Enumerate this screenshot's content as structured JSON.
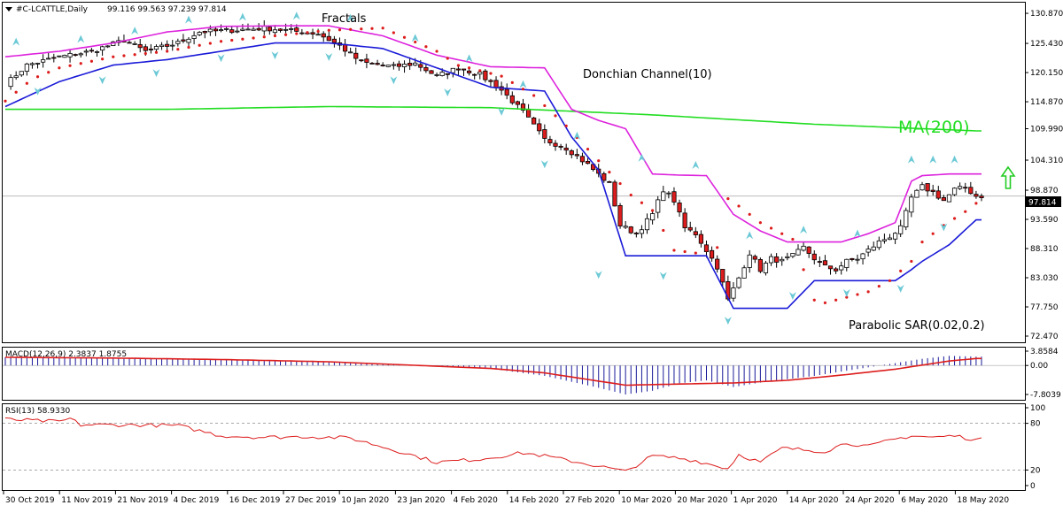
{
  "header": {
    "symbol_period": "#C-LCATTLE,Daily",
    "ohlc": "99.116 99.563 97.239 97.814"
  },
  "colors": {
    "bull": "#ffffff",
    "bear": "#dd1d1d",
    "candle_outline": "#000000",
    "ma": "#22dd22",
    "dc_upper": "#dd22dd",
    "dc_lower": "#1a1ad8",
    "sar": "#dd1d1d",
    "fractal": "#6cc9d6",
    "arrow": "#22cc22",
    "macd_hist": "#1a1a9a",
    "macd_signal": "#dd1d1d",
    "rsi": "#dd1d1d",
    "price_label_bg": "#000000"
  },
  "labels": {
    "fractals": "Fractals",
    "donchian": "Donchian Channel(10)",
    "ma": "MA(200)",
    "sar": "Parabolic SAR(0.02,0.2)",
    "macd": "MACD(12,26,9) 2.3837 1.8755",
    "rsi": "RSI(13) 58.9330",
    "arrow_icon": "up-arrow-icon"
  },
  "chart_data": [
    {
      "type": "candlestick",
      "title": "#C-LCATTLE,Daily",
      "current_price": "97.814",
      "price_axis_ticks": [
        "130.870",
        "125.430",
        "120.150",
        "114.870",
        "109.990",
        "104.310",
        "98.870",
        "93.590",
        "88.310",
        "83.030",
        "77.750",
        "72.470"
      ],
      "ylim": [
        72.47,
        132.0
      ],
      "x_axis_ticks": [
        "30 Oct 2019",
        "11 Nov 2019",
        "21 Nov 2019",
        "4 Dec 2019",
        "16 Dec 2019",
        "27 Dec 2019",
        "10 Jan 2020",
        "23 Jan 2020",
        "4 Feb 2020",
        "14 Feb 2020",
        "27 Feb 2020",
        "10 Mar 2020",
        "20 Mar 2020",
        "1 Apr 2020",
        "14 Apr 2020",
        "24 Apr 2020",
        "6 May 2020",
        "18 May 2020"
      ],
      "close_anchors": [
        [
          0,
          118.0
        ],
        [
          4,
          121.5
        ],
        [
          10,
          123.0
        ],
        [
          16,
          124.0
        ],
        [
          22,
          126.0
        ],
        [
          26,
          124.0
        ],
        [
          32,
          125.5
        ],
        [
          36,
          127.5
        ],
        [
          42,
          127.8
        ],
        [
          48,
          128.2
        ],
        [
          54,
          127.6
        ],
        [
          58,
          127.2
        ],
        [
          62,
          125.0
        ],
        [
          66,
          122.0
        ],
        [
          72,
          121.2
        ],
        [
          76,
          121.8
        ],
        [
          80,
          119.5
        ],
        [
          84,
          121.0
        ],
        [
          88,
          119.8
        ],
        [
          92,
          117.0
        ],
        [
          96,
          113.0
        ],
        [
          100,
          108.0
        ],
        [
          104,
          106.5
        ],
        [
          108,
          103.5
        ],
        [
          112,
          100.0
        ],
        [
          114,
          92.5
        ],
        [
          117,
          91.0
        ],
        [
          120,
          94.5
        ],
        [
          122,
          99.0
        ],
        [
          124,
          97.0
        ],
        [
          126,
          92.0
        ],
        [
          128,
          91.0
        ],
        [
          130,
          88.0
        ],
        [
          132,
          85.0
        ],
        [
          134,
          79.0
        ],
        [
          136,
          83.0
        ],
        [
          138,
          87.5
        ],
        [
          140,
          84.5
        ],
        [
          142,
          86.5
        ],
        [
          144,
          86.0
        ],
        [
          146,
          87.0
        ],
        [
          148,
          88.5
        ],
        [
          150,
          86.5
        ],
        [
          152,
          85.0
        ],
        [
          154,
          84.5
        ],
        [
          156,
          86.0
        ],
        [
          158,
          86.5
        ],
        [
          160,
          88.0
        ],
        [
          162,
          89.5
        ],
        [
          164,
          90.5
        ],
        [
          166,
          92.0
        ],
        [
          168,
          97.5
        ],
        [
          170,
          99.5
        ],
        [
          172,
          98.5
        ],
        [
          174,
          97.0
        ],
        [
          176,
          99.0
        ],
        [
          178,
          99.3
        ],
        [
          180,
          97.8
        ]
      ],
      "series": [
        {
          "name": "MA(200)",
          "x": [
            0,
            30,
            60,
            90,
            120,
            150,
            180
          ],
          "values": [
            113.5,
            113.5,
            114.0,
            113.8,
            112.5,
            110.8,
            109.6
          ]
        },
        {
          "name": "Donchian Channel(10) upper",
          "x": [
            0,
            10,
            20,
            30,
            40,
            50,
            60,
            70,
            80,
            90,
            100,
            105,
            110,
            115,
            120,
            125,
            130,
            135,
            140,
            145,
            150,
            155,
            160,
            165,
            168,
            170,
            175,
            180
          ],
          "values": [
            123.0,
            124.0,
            125.5,
            127.5,
            128.5,
            128.6,
            128.6,
            126.8,
            123.3,
            121.2,
            121.0,
            113.5,
            111.5,
            110.0,
            101.8,
            101.6,
            101.5,
            94.5,
            91.5,
            89.5,
            89.5,
            89.5,
            91.0,
            93.0,
            100.5,
            101.5,
            101.8,
            101.8
          ]
        },
        {
          "name": "Donchian Channel(10) lower",
          "x": [
            0,
            10,
            20,
            30,
            40,
            50,
            60,
            70,
            80,
            90,
            100,
            105,
            110,
            115,
            120,
            125,
            130,
            135,
            140,
            145,
            150,
            155,
            160,
            165,
            168,
            170,
            175,
            180
          ],
          "values": [
            114.0,
            118.5,
            121.5,
            122.5,
            124.0,
            125.5,
            125.5,
            124.5,
            121.0,
            117.5,
            116.8,
            108.5,
            102.5,
            87.0,
            87.0,
            87.0,
            87.0,
            77.5,
            77.5,
            77.5,
            82.5,
            82.5,
            82.5,
            82.5,
            84.5,
            86.0,
            89.0,
            93.5
          ]
        },
        {
          "name": "Parabolic SAR(0.02,0.2)",
          "x": [
            0,
            5,
            10,
            20,
            30,
            40,
            50,
            60,
            70,
            80,
            85,
            86,
            92,
            98,
            104,
            110,
            116,
            120,
            124,
            128,
            132,
            133,
            136,
            140,
            146,
            150,
            152,
            156,
            160,
            164,
            168,
            170,
            174,
            178,
            180
          ],
          "values": [
            115.0,
            119.0,
            121.0,
            123.0,
            124.0,
            125.8,
            126.8,
            127.8,
            128.2,
            124.0,
            120.8,
            121.0,
            119.5,
            116.0,
            110.5,
            104.2,
            98.0,
            95.2,
            88.0,
            87.5,
            88.5,
            98.0,
            96.0,
            93.0,
            90.0,
            79.0,
            78.5,
            79.5,
            80.5,
            82.5,
            86.0,
            89.5,
            92.5,
            95.0,
            96.5
          ]
        },
        {
          "name": "Fractals up",
          "x": [
            2,
            14,
            24,
            34,
            44,
            54,
            64,
            76,
            86,
            96,
            106,
            118,
            128,
            138,
            148,
            158,
            168,
            172,
            176
          ],
          "values": [
            125.5,
            126.0,
            127.5,
            129.5,
            130.0,
            130.2,
            129.8,
            126.2,
            122.5,
            117.8,
            108.5,
            104.5,
            103.2,
            90.5,
            91.5,
            90.8,
            104.2,
            104.2,
            104.2
          ]
        },
        {
          "name": "Fractals down",
          "x": [
            6,
            18,
            28,
            40,
            50,
            60,
            72,
            82,
            92,
            100,
            110,
            122,
            134,
            146,
            156,
            166,
            174
          ],
          "values": [
            117.0,
            119.0,
            120.3,
            123.0,
            123.5,
            123.2,
            119.0,
            116.8,
            113.3,
            103.8,
            83.8,
            83.6,
            75.5,
            80.0,
            80.5,
            81.3,
            92.4
          ]
        }
      ]
    },
    {
      "type": "bar",
      "title": "MACD(12,26,9) 2.3837 1.8755",
      "y_ticks": [
        "3.8584",
        "0.00",
        "-7.8039"
      ],
      "ylim": [
        -7.8039,
        3.8584
      ],
      "hist_anchors": [
        [
          0,
          2.2
        ],
        [
          20,
          2.0
        ],
        [
          40,
          1.6
        ],
        [
          60,
          1.0
        ],
        [
          80,
          -0.2
        ],
        [
          90,
          -0.9
        ],
        [
          100,
          -2.8
        ],
        [
          110,
          -6.0
        ],
        [
          115,
          -7.8
        ],
        [
          120,
          -6.8
        ],
        [
          125,
          -4.8
        ],
        [
          130,
          -4.0
        ],
        [
          135,
          -5.8
        ],
        [
          140,
          -4.6
        ],
        [
          150,
          -2.8
        ],
        [
          160,
          -0.5
        ],
        [
          170,
          1.8
        ],
        [
          175,
          2.6
        ],
        [
          180,
          2.38
        ]
      ],
      "signal_anchors": [
        [
          0,
          2.2
        ],
        [
          20,
          2.0
        ],
        [
          40,
          1.6
        ],
        [
          60,
          1.0
        ],
        [
          80,
          -0.2
        ],
        [
          90,
          -0.8
        ],
        [
          100,
          -2.0
        ],
        [
          110,
          -4.2
        ],
        [
          115,
          -5.3
        ],
        [
          125,
          -5.0
        ],
        [
          135,
          -4.7
        ],
        [
          145,
          -4.0
        ],
        [
          155,
          -2.6
        ],
        [
          165,
          -1.0
        ],
        [
          175,
          1.2
        ],
        [
          180,
          1.88
        ]
      ]
    },
    {
      "type": "line",
      "title": "RSI(13) 58.9330",
      "y_ticks": [
        "100",
        "80",
        "20",
        "0"
      ],
      "ylim": [
        0,
        100
      ],
      "rsi_anchors": [
        [
          0,
          85
        ],
        [
          10,
          82
        ],
        [
          12,
          86
        ],
        [
          14,
          78
        ],
        [
          24,
          78
        ],
        [
          32,
          77
        ],
        [
          40,
          64
        ],
        [
          48,
          62
        ],
        [
          56,
          63
        ],
        [
          64,
          61
        ],
        [
          72,
          46
        ],
        [
          80,
          30
        ],
        [
          88,
          34
        ],
        [
          96,
          42
        ],
        [
          100,
          38
        ],
        [
          110,
          25
        ],
        [
          115,
          18
        ],
        [
          120,
          38
        ],
        [
          124,
          36
        ],
        [
          128,
          32
        ],
        [
          132,
          25
        ],
        [
          134,
          22
        ],
        [
          136,
          40
        ],
        [
          140,
          30
        ],
        [
          144,
          48
        ],
        [
          148,
          46
        ],
        [
          152,
          44
        ],
        [
          156,
          55
        ],
        [
          160,
          50
        ],
        [
          164,
          58
        ],
        [
          168,
          64
        ],
        [
          172,
          62
        ],
        [
          176,
          64
        ],
        [
          180,
          58.93
        ]
      ]
    }
  ]
}
